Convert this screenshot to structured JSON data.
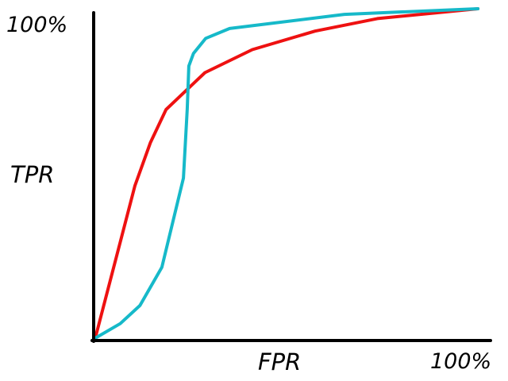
{
  "chart_data": {
    "type": "line",
    "title": "",
    "xlabel": "FPR",
    "ylabel": "TPR",
    "x_tick_max_label": "100%",
    "y_tick_max_label": "100%",
    "xlim": [
      0,
      100
    ],
    "ylim": [
      0,
      100
    ],
    "grid": false,
    "legend": "none",
    "series": [
      {
        "color": "#ee1111",
        "x": [
          0,
          10.3,
          14.3,
          18.4,
          28.5,
          40.8,
          57.1,
          73.3,
          99.4
        ],
        "y": [
          0,
          46.3,
          59.3,
          69.4,
          80.6,
          87.6,
          93.2,
          97.0,
          100
        ]
      },
      {
        "color": "#16b9c9",
        "x": [
          0,
          6.5,
          11.6,
          17.3,
          22.9,
          23.9,
          24.3,
          25.5,
          28.7,
          34.9,
          64.7,
          99.4
        ],
        "y": [
          0,
          4.4,
          9.9,
          21.5,
          48.6,
          69.6,
          82.6,
          86.4,
          91.0,
          94.0,
          98.3,
          100
        ]
      }
    ]
  }
}
